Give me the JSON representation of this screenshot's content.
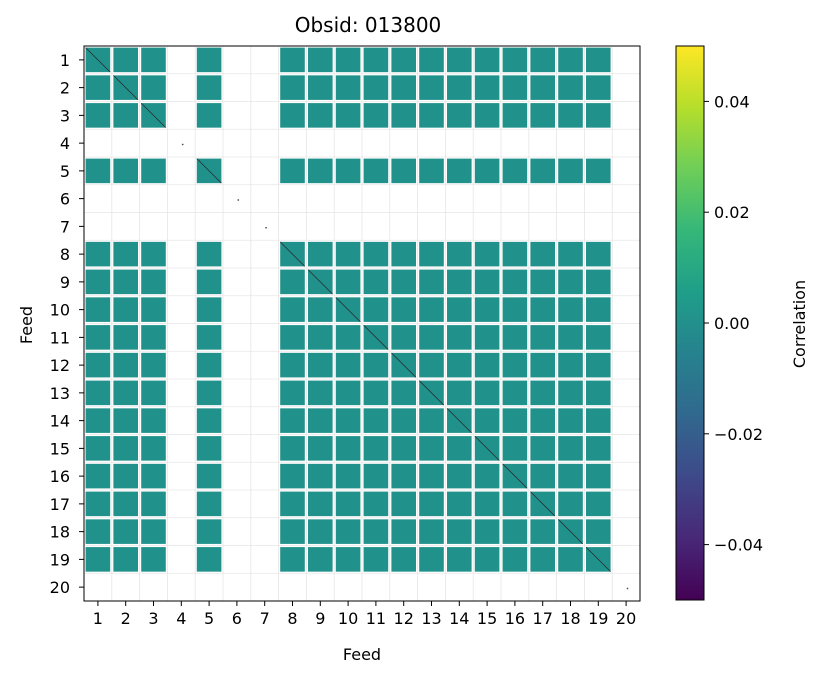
{
  "chart_data": {
    "type": "heatmap",
    "title": "Obsid: 013800",
    "xlabel": "Feed",
    "ylabel": "Feed",
    "x_ticks": [
      "1",
      "2",
      "3",
      "4",
      "5",
      "6",
      "7",
      "8",
      "9",
      "10",
      "11",
      "12",
      "13",
      "14",
      "15",
      "16",
      "17",
      "18",
      "19",
      "20"
    ],
    "y_ticks": [
      "1",
      "2",
      "3",
      "4",
      "5",
      "6",
      "7",
      "8",
      "9",
      "10",
      "11",
      "12",
      "13",
      "14",
      "15",
      "16",
      "17",
      "18",
      "19",
      "20"
    ],
    "grid": true,
    "colorbar": {
      "label": "Correlation",
      "range": [
        -0.05,
        0.05
      ],
      "colormap": "viridis",
      "tick_values": [
        0.04,
        0.02,
        0.0,
        -0.02,
        -0.04
      ],
      "tick_labels": [
        "0.04",
        "0.02",
        "0.00",
        "−0.02",
        "−0.04"
      ]
    },
    "masked_feeds": [
      4,
      6,
      7,
      20
    ],
    "active_feeds": [
      1,
      2,
      3,
      5,
      8,
      9,
      10,
      11,
      12,
      13,
      14,
      15,
      16,
      17,
      18,
      19
    ],
    "off_diagonal_value": 0.0,
    "fill_color": "#21918c",
    "colors": {
      "viridis": [
        "#440154",
        "#482878",
        "#3e4989",
        "#31688e",
        "#26828e",
        "#1f9e89",
        "#35b779",
        "#6ece58",
        "#b5de2b",
        "#fde725"
      ]
    }
  }
}
